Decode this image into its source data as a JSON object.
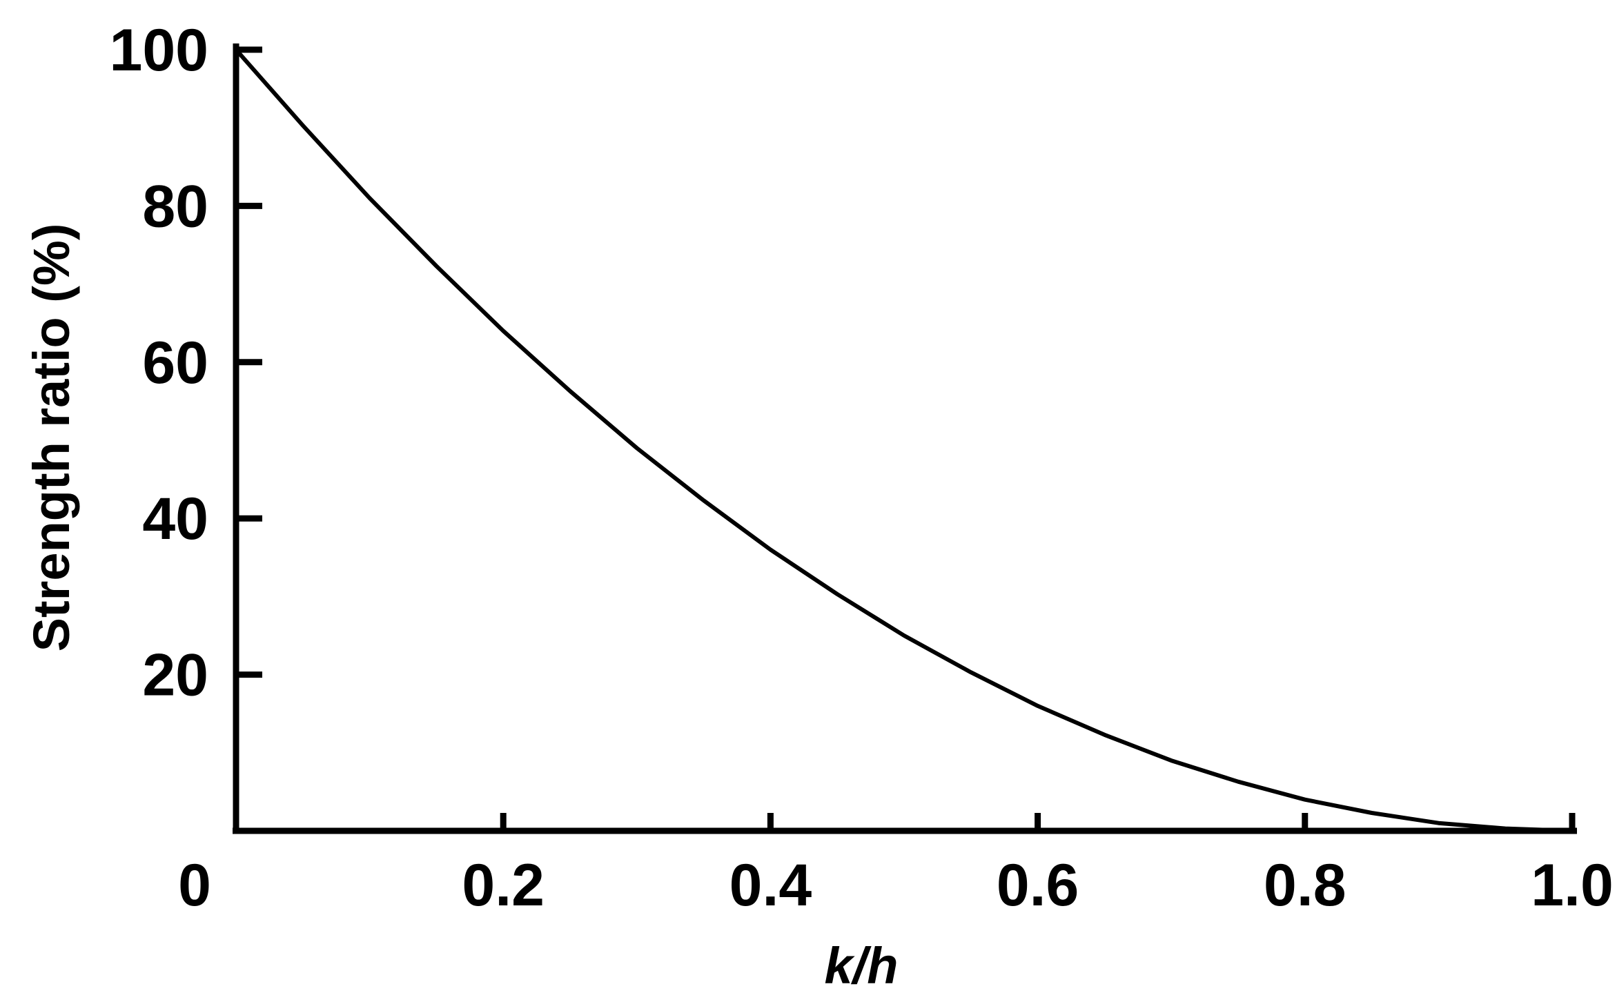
{
  "chart_data": {
    "type": "line",
    "xlabel": "k/h",
    "ylabel": "Strength ratio (%)",
    "xlim": [
      0,
      1.0
    ],
    "ylim": [
      0,
      100
    ],
    "x_ticks": [
      {
        "value": 0,
        "label": "0"
      },
      {
        "value": 0.2,
        "label": "0.2"
      },
      {
        "value": 0.4,
        "label": "0.4"
      },
      {
        "value": 0.6,
        "label": "0.6"
      },
      {
        "value": 0.8,
        "label": "0.8"
      },
      {
        "value": 1.0,
        "label": "1.0"
      }
    ],
    "y_ticks": [
      {
        "value": 20,
        "label": "20"
      },
      {
        "value": 40,
        "label": "40"
      },
      {
        "value": 60,
        "label": "60"
      },
      {
        "value": 80,
        "label": "80"
      },
      {
        "value": 100,
        "label": "100"
      }
    ],
    "grid": false,
    "series": [
      {
        "x": [
          0,
          0.05,
          0.1,
          0.15,
          0.2,
          0.25,
          0.3,
          0.35,
          0.4,
          0.45,
          0.5,
          0.55,
          0.6,
          0.65,
          0.7,
          0.75,
          0.8,
          0.85,
          0.9,
          0.95,
          1.0
        ],
        "y": [
          100,
          90.3,
          81.0,
          72.3,
          64.0,
          56.3,
          49.0,
          42.3,
          36.0,
          30.3,
          25.0,
          20.3,
          16.0,
          12.3,
          9.0,
          6.3,
          4.0,
          2.3,
          1.0,
          0.3,
          0
        ],
        "color": "#000000"
      }
    ]
  }
}
